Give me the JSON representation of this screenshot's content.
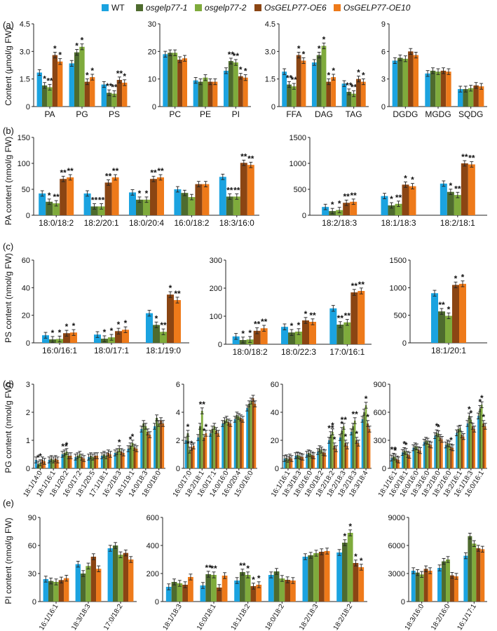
{
  "legend": [
    {
      "label": "WT",
      "color": "#1ba3e0",
      "italic": false
    },
    {
      "label": "osgelp77-1",
      "color": "#4e6b2e",
      "italic": true
    },
    {
      "label": "osgelp77-2",
      "color": "#7fab3c",
      "italic": true
    },
    {
      "label": "OsGELP77-OE6",
      "color": "#8b4513",
      "italic": true
    },
    {
      "label": "OsGELP77-OE10",
      "color": "#ee7a1a",
      "italic": true
    }
  ],
  "panel_labels": [
    "(a)",
    "(b)",
    "(c)",
    "(d)",
    "(e)"
  ],
  "row_ylabels": {
    "a": "Content (μmol/g FW)",
    "b": "PA content (nmol/g FW)",
    "c": "PS content (nmol/g FW)",
    "d": "PG content (nmol/g FW)",
    "e": "PI content (nmol/g FW)"
  },
  "chart_data": [
    {
      "id": "a1",
      "type": "bar",
      "title": "",
      "ylim": [
        0,
        4.5
      ],
      "yticks": [
        "0",
        "1.5",
        "3.0",
        "4.5"
      ],
      "categories": [
        "PA",
        "PG",
        "PS"
      ],
      "values": [
        [
          1.85,
          1.15,
          1.05,
          2.8,
          2.45
        ],
        [
          2.35,
          2.95,
          3.25,
          1.35,
          1.6
        ],
        [
          1.2,
          0.75,
          0.7,
          1.45,
          1.3
        ]
      ],
      "stars": [
        [
          "",
          "*",
          "**",
          "*",
          "*"
        ],
        [
          "",
          "*",
          "*",
          "*",
          "*"
        ],
        [
          "",
          "**",
          "**",
          "**",
          "*"
        ]
      ]
    },
    {
      "id": "a2",
      "type": "bar",
      "ylim": [
        0,
        30
      ],
      "yticks": [
        "0",
        "10",
        "20",
        "30"
      ],
      "categories": [
        "PC",
        "PE",
        "PI"
      ],
      "values": [
        [
          19,
          19.5,
          19.5,
          17,
          17.5
        ],
        [
          9.5,
          9,
          10.5,
          9,
          9
        ],
        [
          13,
          16.5,
          16,
          11,
          10.5
        ]
      ],
      "stars": [
        [
          "",
          "",
          "",
          "",
          ""
        ],
        [
          "",
          "",
          "",
          "",
          ""
        ],
        [
          "",
          "**",
          "**",
          "*",
          "*"
        ]
      ]
    },
    {
      "id": "a3",
      "type": "bar",
      "ylim": [
        0,
        4.5
      ],
      "yticks": [
        "0",
        "1.5",
        "3.0",
        "4.5"
      ],
      "categories": [
        "FFA",
        "DAG",
        "TAG"
      ],
      "values": [
        [
          1.9,
          1.2,
          1.1,
          2.8,
          2.5
        ],
        [
          2.4,
          2.8,
          3.3,
          1.35,
          1.6
        ],
        [
          1.25,
          0.8,
          0.7,
          1.5,
          1.35
        ]
      ],
      "stars": [
        [
          "",
          "**",
          "**",
          "*",
          "*"
        ],
        [
          "",
          "*",
          "*",
          "*",
          "*"
        ],
        [
          "",
          "**",
          "**",
          "*",
          "*"
        ]
      ]
    },
    {
      "id": "a4",
      "type": "bar",
      "ylim": [
        0,
        9
      ],
      "yticks": [
        "0",
        "3",
        "6",
        "9"
      ],
      "categories": [
        "DGDG",
        "MGDG",
        "SQDG"
      ],
      "values": [
        [
          5,
          5.3,
          5.2,
          6,
          5.6
        ],
        [
          3.6,
          3.9,
          3.8,
          3.9,
          3.8
        ],
        [
          1.9,
          1.9,
          2,
          2.3,
          2.2
        ]
      ],
      "stars": [
        [
          "",
          "",
          "",
          "",
          ""
        ],
        [
          "",
          "",
          "",
          "",
          ""
        ],
        [
          "",
          "",
          "",
          "",
          ""
        ]
      ]
    },
    {
      "id": "b1",
      "type": "bar",
      "ylim": [
        0,
        150
      ],
      "yticks": [
        "0",
        "50",
        "100",
        "150"
      ],
      "categories": [
        "18:0/18:2",
        "18:2/20:1",
        "18:0/20:4",
        "16:0/18:2",
        "18:3/16:0"
      ],
      "values": [
        [
          42,
          26,
          23,
          70,
          73
        ],
        [
          42,
          17,
          17,
          63,
          73
        ],
        [
          44,
          30,
          30,
          70,
          73
        ],
        [
          50,
          43,
          35,
          60,
          60
        ],
        [
          74,
          36,
          36,
          101,
          97
        ]
      ],
      "stars": [
        [
          "",
          "*",
          "**",
          "**",
          "**"
        ],
        [
          "",
          "**",
          "**",
          "**",
          "**"
        ],
        [
          "",
          "*",
          "*",
          "**",
          "**"
        ],
        [
          "",
          "",
          "",
          "",
          ""
        ],
        [
          "",
          "**",
          "**",
          "**",
          "**"
        ]
      ]
    },
    {
      "id": "b2",
      "type": "bar",
      "ylim": [
        0,
        1500
      ],
      "yticks": [
        "0",
        "500",
        "1000",
        "1500"
      ],
      "categories": [
        "18:2/18:3",
        "18:1/18:3",
        "18:2/18:1"
      ],
      "values": [
        [
          160,
          80,
          100,
          240,
          260
        ],
        [
          370,
          190,
          220,
          590,
          560
        ],
        [
          610,
          450,
          390,
          1000,
          980
        ]
      ],
      "stars": [
        [
          "",
          "*",
          "*",
          "**",
          "**"
        ],
        [
          "",
          "*",
          "**",
          "*",
          "*"
        ],
        [
          "",
          "*",
          "**",
          "**",
          "**"
        ]
      ]
    },
    {
      "id": "c1",
      "type": "bar",
      "ylim": [
        0,
        60
      ],
      "yticks": [
        "0",
        "20",
        "40",
        "60"
      ],
      "categories": [
        "16:0/16:1",
        "18:0/17:1",
        "18:1/19:0"
      ],
      "values": [
        [
          5.5,
          2.5,
          2.8,
          7,
          7.5
        ],
        [
          6,
          3,
          4,
          8.5,
          9.5
        ],
        [
          21.5,
          13,
          8,
          35,
          31
        ]
      ],
      "stars": [
        [
          "",
          "*",
          "*",
          "*",
          "*"
        ],
        [
          "",
          "*",
          "*",
          "*",
          "*"
        ],
        [
          "",
          "*",
          "**",
          "*",
          "**"
        ]
      ]
    },
    {
      "id": "c2",
      "type": "bar",
      "ylim": [
        0,
        300
      ],
      "yticks": [
        "0",
        "100",
        "200",
        "300"
      ],
      "categories": [
        "18:0/18:2",
        "18:0/22:3",
        "17:0/16:1"
      ],
      "values": [
        [
          28,
          15,
          17,
          48,
          57
        ],
        [
          62,
          42,
          45,
          85,
          80
        ],
        [
          128,
          70,
          78,
          185,
          190
        ]
      ],
      "stars": [
        [
          "",
          "*",
          "*",
          "**",
          "**"
        ],
        [
          "",
          "*",
          "*",
          "*",
          "**"
        ],
        [
          "",
          "**",
          "**",
          "**",
          "**"
        ]
      ]
    },
    {
      "id": "c3",
      "type": "bar",
      "ylim": [
        0,
        1500
      ],
      "yticks": [
        "0",
        "500",
        "1000",
        "1500"
      ],
      "categories": [
        "18:1/20:1"
      ],
      "values": [
        [
          900,
          570,
          490,
          1050,
          1070
        ]
      ],
      "stars": [
        [
          "",
          "**",
          "*",
          "*",
          "*"
        ]
      ]
    },
    {
      "id": "d1",
      "type": "bar",
      "ylim": [
        0,
        3
      ],
      "yticks": [
        "0",
        "1",
        "2",
        "3"
      ],
      "rotate": true,
      "categories": [
        "18:1/14:0",
        "18:1/16:1",
        "18:1/20:2",
        "16:0/17:2",
        "18:1/20:5",
        "17:1/18:1",
        "16:2/18:3",
        "18:1/19:1",
        "14:0/18:3",
        "18:0/18:0"
      ],
      "values": [
        [
          0.3,
          0.15,
          0.2,
          0.3,
          0.25
        ],
        [
          0.3,
          0.35,
          0.3,
          0.35,
          0.3
        ],
        [
          0.5,
          0.55,
          0.6,
          0.45,
          0.45
        ],
        [
          0.4,
          0.45,
          0.5,
          0.4,
          0.35
        ],
        [
          0.4,
          0.45,
          0.4,
          0.45,
          0.45
        ],
        [
          0.45,
          0.5,
          0.45,
          0.55,
          0.5
        ],
        [
          0.55,
          0.6,
          0.7,
          0.6,
          0.55
        ],
        [
          0.7,
          0.8,
          0.9,
          0.75,
          0.7
        ],
        [
          1.4,
          1.6,
          1.5,
          1.3,
          1.2
        ],
        [
          1.5,
          1.8,
          1.6,
          1.7,
          1.6
        ]
      ],
      "stars": [
        [
          "",
          "*",
          "*",
          "",
          ""
        ],
        [
          "",
          "",
          "",
          "",
          ""
        ],
        [
          "",
          "**",
          "*",
          "",
          ""
        ],
        [
          "",
          "",
          "",
          "",
          ""
        ],
        [
          "",
          "",
          "",
          "",
          ""
        ],
        [
          "",
          "",
          "",
          "",
          ""
        ],
        [
          "",
          "",
          "*",
          "",
          ""
        ],
        [
          "",
          "*",
          "*",
          "",
          ""
        ],
        [
          "",
          "",
          "",
          "",
          ""
        ],
        [
          "",
          "",
          "",
          "",
          ""
        ]
      ]
    },
    {
      "id": "d2",
      "type": "bar",
      "ylim": [
        0,
        6
      ],
      "yticks": [
        "0",
        "2",
        "4",
        "6"
      ],
      "rotate": true,
      "categories": [
        "16:0/17:0",
        "18:2/18:1",
        "16:0/17:1",
        "14:0/16:0",
        "16:0/20:4",
        "15:0/16:0"
      ],
      "values": [
        [
          2,
          2.5,
          1.3,
          1.5,
          1.6
        ],
        [
          2.2,
          3,
          4.1,
          2.2,
          2.5
        ],
        [
          2.5,
          2.8,
          3,
          2.7,
          2.5
        ],
        [
          3.2,
          3.4,
          3.5,
          3.3,
          3.2
        ],
        [
          3.5,
          3.8,
          3.7,
          3.6,
          3.5
        ],
        [
          4.3,
          4.6,
          4.8,
          5,
          4.6
        ]
      ],
      "stars": [
        [
          "",
          "*",
          "**",
          "",
          ""
        ],
        [
          "",
          "",
          "**",
          "*",
          "*"
        ],
        [
          "",
          "",
          "",
          "",
          ""
        ],
        [
          "",
          "",
          "",
          "",
          ""
        ],
        [
          "",
          "",
          "",
          "",
          ""
        ],
        [
          "",
          "",
          "",
          "",
          ""
        ]
      ]
    },
    {
      "id": "d3",
      "type": "bar",
      "ylim": [
        0,
        60
      ],
      "yticks": [
        "0",
        "20",
        "40",
        "60"
      ],
      "rotate": true,
      "categories": [
        "16:1/16:1",
        "18:3/18:3",
        "18:0/16:0",
        "18:0/18:2",
        "18:2/18:2",
        "18:2/18:3",
        "18:2/18:3",
        "18:3/18:4"
      ],
      "values": [
        [
          7,
          7.5,
          6.5,
          8,
          7
        ],
        [
          9,
          9.5,
          9,
          8.5,
          8
        ],
        [
          10,
          11,
          10.5,
          9.5,
          9
        ],
        [
          12,
          14,
          13,
          11.5,
          11
        ],
        [
          20,
          24,
          26,
          16,
          14
        ],
        [
          22,
          27,
          30,
          18,
          16
        ],
        [
          26,
          30,
          34,
          20,
          18
        ],
        [
          35,
          40,
          45,
          32,
          28
        ]
      ],
      "stars": [
        [
          "",
          "",
          "",
          "",
          ""
        ],
        [
          "",
          "",
          "",
          "",
          ""
        ],
        [
          "",
          "",
          "",
          "",
          ""
        ],
        [
          "",
          "",
          "",
          "",
          ""
        ],
        [
          "",
          "**",
          "*",
          "*",
          ""
        ],
        [
          "",
          "*",
          "**",
          "*",
          ""
        ],
        [
          "",
          "",
          "**",
          "*",
          ""
        ],
        [
          "",
          "",
          "*",
          "*",
          ""
        ]
      ]
    },
    {
      "id": "d4",
      "type": "bar",
      "ylim": [
        0,
        900
      ],
      "yticks": [
        "0",
        "300",
        "600",
        "900"
      ],
      "rotate": true,
      "categories": [
        "18:1/16:1",
        "16:0/18:1",
        "16:0/16:0",
        "18:3/16:0",
        "18:2/18:0",
        "18:2/16:0",
        "18:2/16:1",
        "16:1/18:3",
        "16:0/16:1"
      ],
      "values": [
        [
          110,
          130,
          120,
          100,
          90
        ],
        [
          170,
          190,
          180,
          150,
          140
        ],
        [
          220,
          240,
          230,
          200,
          190
        ],
        [
          280,
          300,
          290,
          260,
          250
        ],
        [
          350,
          380,
          370,
          330,
          310
        ],
        [
          250,
          270,
          260,
          230,
          220
        ],
        [
          380,
          420,
          430,
          360,
          340
        ],
        [
          480,
          560,
          520,
          450,
          420
        ],
        [
          560,
          640,
          680,
          480,
          450
        ]
      ],
      "stars": [
        [
          "",
          "**",
          "*",
          "",
          ""
        ],
        [
          "",
          "*",
          "*",
          "",
          ""
        ],
        [
          "",
          "",
          "",
          "",
          ""
        ],
        [
          "",
          "",
          "",
          "",
          ""
        ],
        [
          "",
          "*",
          "*",
          "",
          ""
        ],
        [
          "",
          "",
          "",
          "*",
          ""
        ],
        [
          "",
          "",
          "",
          "",
          ""
        ],
        [
          "",
          "*",
          "*",
          "",
          ""
        ],
        [
          "",
          "*",
          "*",
          "*",
          ""
        ]
      ]
    },
    {
      "id": "e1",
      "type": "bar",
      "ylim": [
        0,
        90
      ],
      "yticks": [
        "0",
        "30",
        "60",
        "90"
      ],
      "rotate": true,
      "categories": [
        "16:1/16:1",
        "18:3/18:3",
        "17:0/18:2"
      ],
      "values": [
        [
          24,
          22,
          21,
          23,
          25
        ],
        [
          40,
          30,
          38,
          48,
          35
        ],
        [
          57,
          60,
          50,
          52,
          45
        ]
      ],
      "stars": [
        [
          "",
          "",
          "",
          "",
          ""
        ],
        [
          "",
          "",
          "",
          "",
          ""
        ],
        [
          "",
          "",
          "",
          "",
          ""
        ]
      ]
    },
    {
      "id": "e2",
      "type": "bar",
      "ylim": [
        0,
        600
      ],
      "yticks": [
        "0",
        "200",
        "400",
        "600"
      ],
      "rotate": true,
      "categories": [
        "18:1/18:3",
        "16:0/18:1",
        "18:1/18:2",
        "18:0/18:2",
        "18:2/18:3",
        "18:2/18:2"
      ],
      "values": [
        [
          105,
          140,
          130,
          120,
          175
        ],
        [
          115,
          195,
          190,
          100,
          185
        ],
        [
          150,
          210,
          190,
          110,
          120
        ],
        [
          190,
          215,
          165,
          155,
          150
        ],
        [
          320,
          330,
          345,
          355,
          360
        ],
        [
          350,
          420,
          490,
          275,
          245
        ]
      ],
      "stars": [
        [
          "",
          "",
          "",
          "",
          ""
        ],
        [
          "",
          "**",
          "**",
          "",
          ""
        ],
        [
          "",
          "**",
          "*",
          "*",
          "*"
        ],
        [
          "",
          "",
          "",
          "",
          ""
        ],
        [
          "",
          "",
          "",
          "",
          ""
        ],
        [
          "",
          "*",
          "*",
          "*",
          "*"
        ]
      ]
    },
    {
      "id": "e3",
      "type": "bar",
      "ylim": [
        0,
        9000
      ],
      "yticks": [
        "0",
        "3000",
        "6000",
        "9000"
      ],
      "rotate": true,
      "categories": [
        "18:3/16:0",
        "18:2/16:0",
        "16:1/17:1"
      ],
      "values": [
        [
          3300,
          3100,
          2900,
          3500,
          3300
        ],
        [
          3600,
          4300,
          4500,
          2800,
          2700
        ],
        [
          4900,
          7000,
          6200,
          5700,
          5600
        ]
      ],
      "stars": [
        [
          "",
          "",
          "",
          "",
          ""
        ],
        [
          "",
          "",
          "",
          "",
          ""
        ],
        [
          "",
          "",
          "",
          "",
          ""
        ]
      ]
    }
  ]
}
